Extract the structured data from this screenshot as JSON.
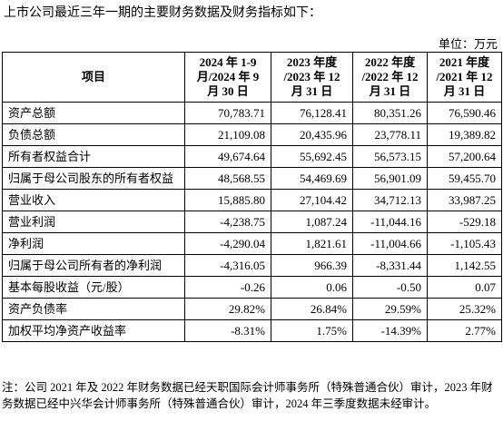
{
  "intro": "上市公司最近三年一期的主要财务数据及财务指标如下：",
  "unit": "单位：万元",
  "table": {
    "header": [
      "项目",
      "2024 年 1-9 月/2024 年 9 月 30 日",
      "2023 年度 /2023 年 12 月 31 日",
      "2022 年度 /2022 年 12 月 31 日",
      "2021 年度 /2021 年 12 月 31 日"
    ],
    "rows": [
      [
        "资产总额",
        "70,783.71",
        "76,128.41",
        "80,351.26",
        "76,590.46"
      ],
      [
        "负债总额",
        "21,109.08",
        "20,435.96",
        "23,778.11",
        "19,389.82"
      ],
      [
        "所有者权益合计",
        "49,674.64",
        "55,692.45",
        "56,573.15",
        "57,200.64"
      ],
      [
        "归属于母公司股东的所有者权益",
        "48,568.55",
        "54,469.69",
        "56,901.09",
        "59,455.70"
      ],
      [
        "营业收入",
        "15,885.80",
        "27,104.42",
        "34,712.13",
        "33,987.25"
      ],
      [
        "营业利润",
        "-4,238.75",
        "1,087.24",
        "-11,044.16",
        "-529.18"
      ],
      [
        "净利润",
        "-4,290.04",
        "1,821.61",
        "-11,004.66",
        "-1,105.43"
      ],
      [
        "归属于母公司所有者的净利润",
        "-4,316.05",
        "966.39",
        "-8,331.44",
        "1,142.55"
      ],
      [
        "基本每股收益（元/股）",
        "-0.26",
        "0.06",
        "-0.50",
        "0.07"
      ],
      [
        "资产负债率",
        "29.82%",
        "26.84%",
        "29.59%",
        "25.32%"
      ],
      [
        "加权平均净资产收益率",
        "-8.31%",
        "1.75%",
        "-14.39%",
        "2.77%"
      ]
    ]
  },
  "note": "注：公司 2021 年及 2022 年财务数据已经天职国际会计师事务所（特殊普通合伙）审计，2023 年财务数据已经中兴华会计师事务所（特殊普通合伙）审计，2024 年三季度数据未经审计。"
}
